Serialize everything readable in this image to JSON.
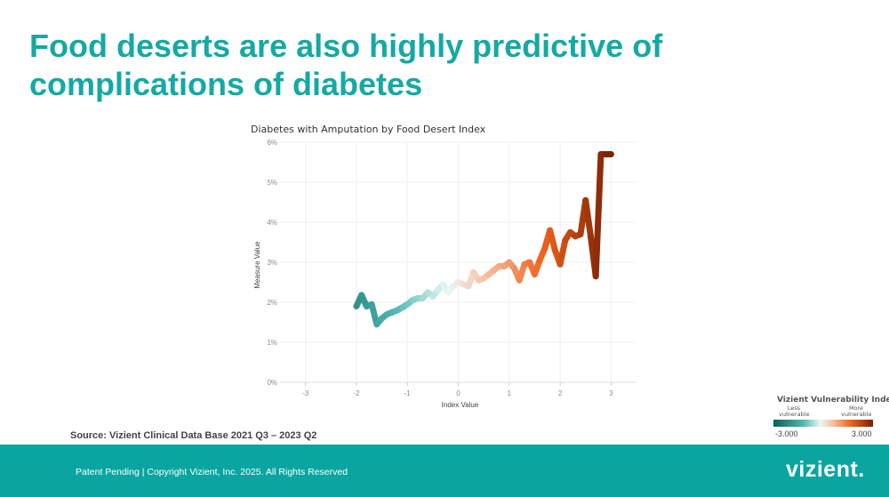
{
  "slide": {
    "title": "Food deserts are also highly predictive of complications of diabetes",
    "source": "Source: Vizient Clinical Data Base 2021 Q3 – 2023 Q2"
  },
  "footer": {
    "text": "Patent Pending  |  Copyright Vizient, Inc. 2025. All Rights Reserved",
    "logo": "vizient."
  },
  "legend": {
    "title": "Vizient Vulnerability Index",
    "low_label": "Less vulnerable",
    "high_label": "More vulnerable",
    "min": "-3.000",
    "max": "3.000",
    "colors": [
      "#0b5f58",
      "#4fb8b0",
      "#e8f7f7",
      "#f6c8ae",
      "#f0621c",
      "#7a2004"
    ]
  },
  "chart_data": {
    "type": "line",
    "title": "Diabetes with Amputation by Food Desert Index",
    "xlabel": "Index Value",
    "ylabel": "Measure Value",
    "xlim": [
      -3.5,
      3.5
    ],
    "ylim": [
      0,
      6
    ],
    "x_ticks": [
      "-3",
      "-2",
      "-1",
      "0",
      "1",
      "2",
      "3"
    ],
    "y_ticks": [
      "0%",
      "1%",
      "2%",
      "3%",
      "4%",
      "5%",
      "6%"
    ],
    "grid": true,
    "series": [
      {
        "x": [
          -2.0,
          -1.9,
          -1.8,
          -1.7,
          -1.6,
          -1.5,
          -1.4,
          -1.3,
          -1.2,
          -1.1,
          -1.0,
          -0.9,
          -0.8,
          -0.7,
          -0.6,
          -0.5,
          -0.4,
          -0.3,
          -0.2,
          -0.1,
          0.0,
          0.1,
          0.2,
          0.3,
          0.4,
          0.5,
          0.6,
          0.7,
          0.8,
          0.9,
          1.0,
          1.1,
          1.2,
          1.3,
          1.4,
          1.5,
          1.6,
          1.7,
          1.8,
          1.9,
          2.0,
          2.1,
          2.2,
          2.3,
          2.4,
          2.5,
          2.6,
          2.7,
          2.8,
          2.9,
          3.0
        ],
        "y": [
          1.9,
          2.18,
          1.9,
          1.95,
          1.45,
          1.6,
          1.7,
          1.75,
          1.8,
          1.87,
          1.95,
          2.05,
          2.1,
          2.1,
          2.25,
          2.15,
          2.3,
          2.45,
          2.25,
          2.4,
          2.5,
          2.45,
          2.4,
          2.75,
          2.55,
          2.6,
          2.7,
          2.8,
          2.9,
          2.9,
          3.0,
          2.85,
          2.55,
          2.95,
          3.0,
          2.7,
          3.05,
          3.35,
          3.8,
          3.3,
          2.95,
          3.55,
          3.75,
          3.65,
          3.7,
          4.55,
          3.65,
          2.65,
          5.7,
          5.7,
          5.7
        ]
      }
    ]
  }
}
